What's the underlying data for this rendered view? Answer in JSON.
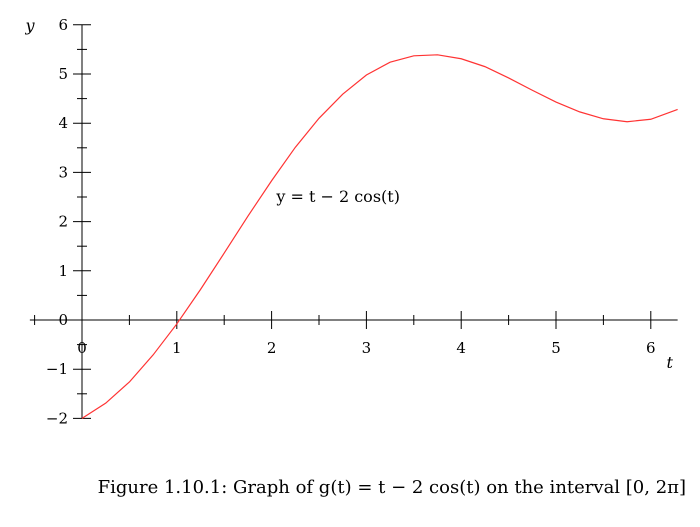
{
  "chart_data": {
    "type": "line",
    "function": "t - 2cos(t)",
    "xlabel": "t",
    "ylabel": "y",
    "xlim": [
      -0.55,
      6.283
    ],
    "ylim": [
      -2,
      6
    ],
    "x_ticks": [
      0,
      1,
      2,
      3,
      4,
      5,
      6
    ],
    "x_tick_labels": [
      "0",
      "1",
      "2",
      "3",
      "4",
      "5",
      "6"
    ],
    "y_ticks": [
      -2,
      -1,
      0,
      1,
      2,
      3,
      4,
      5,
      6
    ],
    "y_tick_labels": [
      "−2",
      "−1",
      "0",
      "1",
      "2",
      "3",
      "4",
      "5",
      "6"
    ],
    "series": [
      {
        "color": "#ff3333",
        "x": [
          0,
          0.25,
          0.5,
          0.75,
          1,
          1.25,
          1.5,
          1.75,
          2,
          2.25,
          2.5,
          2.75,
          3,
          3.25,
          3.5,
          3.75,
          4,
          4.25,
          4.5,
          4.75,
          5,
          5.25,
          5.5,
          5.75,
          6,
          6.283
        ],
        "y": [
          -2,
          -1.69,
          -1.26,
          -0.71,
          -0.08,
          0.62,
          1.36,
          2.11,
          2.83,
          3.51,
          4.1,
          4.59,
          4.98,
          5.24,
          5.37,
          5.39,
          5.31,
          5.15,
          4.92,
          4.67,
          4.43,
          4.23,
          4.09,
          4.03,
          4.08,
          4.28
        ]
      }
    ],
    "annotation": "y = t − 2 cos(t)",
    "grid": false
  },
  "caption": "Figure 1.10.1: Graph of g(t) = t − 2 cos(t) on the interval [0, 2π]"
}
